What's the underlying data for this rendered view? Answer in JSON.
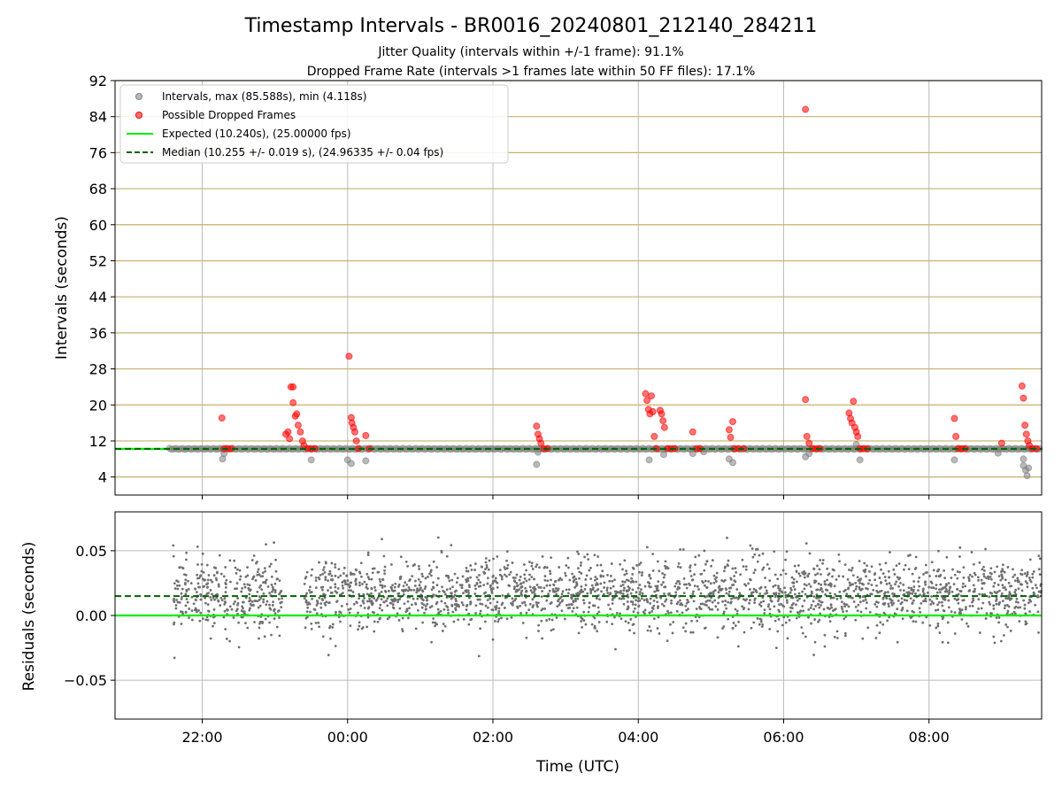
{
  "chart_data": [
    {
      "type": "scatter",
      "title": "Timestamp Intervals - BR0016_20240801_212140_284211",
      "subtitle_lines": [
        "Jitter Quality (intervals within +/-1 frame): 91.1%",
        "Dropped Frame Rate (intervals >1 frames late within 50 FF files): 17.1%"
      ],
      "ylabel": "Intervals (seconds)",
      "ylim": [
        0,
        92
      ],
      "yticks": [
        "4",
        "12",
        "20",
        "28",
        "36",
        "44",
        "52",
        "60",
        "68",
        "76",
        "84",
        "92"
      ],
      "xlim_hours": [
        20.8,
        33.55
      ],
      "x_grid_hours": [
        22,
        24,
        26,
        28,
        30,
        32
      ],
      "legend": {
        "placement": "upper-left",
        "entries": [
          "Intervals, max (85.588s), min (4.118s)",
          "Possible Dropped Frames",
          "Expected (10.240s), (25.00000 fps)",
          "Median (10.255 +/- 0.019 s), (24.96335 +/- 0.04 fps)"
        ]
      },
      "expected_interval": 10.24,
      "median_interval": 10.255,
      "colors": {
        "intervals": "#808080",
        "dropped": "#ff0000",
        "expected": "#00ee00",
        "median": "#006400",
        "hgrid": "#c8b06a",
        "vgrid": "#bbbbbb"
      },
      "interval_band": {
        "x_start": 21.55,
        "x_end": 33.55,
        "value": 10.24
      },
      "interval_outliers": [
        [
          22.28,
          8.0
        ],
        [
          22.3,
          9.2
        ],
        [
          23.5,
          7.8
        ],
        [
          24.0,
          7.8
        ],
        [
          24.05,
          7.0
        ],
        [
          24.25,
          7.6
        ],
        [
          26.6,
          6.8
        ],
        [
          26.62,
          9.5
        ],
        [
          28.15,
          7.8
        ],
        [
          28.35,
          9.0
        ],
        [
          28.75,
          9.2
        ],
        [
          28.9,
          9.6
        ],
        [
          29.25,
          8.0
        ],
        [
          29.3,
          7.2
        ],
        [
          30.3,
          8.5
        ],
        [
          30.35,
          9.2
        ],
        [
          31.05,
          7.8
        ],
        [
          31.0,
          11.2
        ],
        [
          32.35,
          7.8
        ],
        [
          32.95,
          9.3
        ],
        [
          33.3,
          8.0
        ],
        [
          33.3,
          6.5
        ],
        [
          33.33,
          5.5
        ],
        [
          33.35,
          4.3
        ],
        [
          33.37,
          6.0
        ]
      ],
      "dropped_frames": [
        [
          22.27,
          17.1
        ],
        [
          22.3,
          10.3
        ],
        [
          22.35,
          10.3
        ],
        [
          22.4,
          10.3
        ],
        [
          23.15,
          13.5
        ],
        [
          23.18,
          14.0
        ],
        [
          23.2,
          12.5
        ],
        [
          23.22,
          24.0
        ],
        [
          23.25,
          24.0
        ],
        [
          23.25,
          20.5
        ],
        [
          23.28,
          17.5
        ],
        [
          23.3,
          18.0
        ],
        [
          23.32,
          15.5
        ],
        [
          23.35,
          14.0
        ],
        [
          23.38,
          12.0
        ],
        [
          23.4,
          11.0
        ],
        [
          23.45,
          10.3
        ],
        [
          23.5,
          10.3
        ],
        [
          23.55,
          10.3
        ],
        [
          24.02,
          30.8
        ],
        [
          24.05,
          17.2
        ],
        [
          24.06,
          16.0
        ],
        [
          24.08,
          15.0
        ],
        [
          24.1,
          14.0
        ],
        [
          24.12,
          12.0
        ],
        [
          24.15,
          10.3
        ],
        [
          24.25,
          13.2
        ],
        [
          24.3,
          10.3
        ],
        [
          26.6,
          15.3
        ],
        [
          26.62,
          13.5
        ],
        [
          26.64,
          12.5
        ],
        [
          26.66,
          11.5
        ],
        [
          26.7,
          10.3
        ],
        [
          26.75,
          10.3
        ],
        [
          28.1,
          22.5
        ],
        [
          28.12,
          21.0
        ],
        [
          28.14,
          19.0
        ],
        [
          28.16,
          18.0
        ],
        [
          28.18,
          22.0
        ],
        [
          28.2,
          18.5
        ],
        [
          28.22,
          13.0
        ],
        [
          28.25,
          10.3
        ],
        [
          28.3,
          18.8
        ],
        [
          28.32,
          18.0
        ],
        [
          28.34,
          16.5
        ],
        [
          28.36,
          15.0
        ],
        [
          28.4,
          10.3
        ],
        [
          28.45,
          10.3
        ],
        [
          28.5,
          10.3
        ],
        [
          28.75,
          14.0
        ],
        [
          28.8,
          10.3
        ],
        [
          28.85,
          10.3
        ],
        [
          29.25,
          14.5
        ],
        [
          29.27,
          12.8
        ],
        [
          29.3,
          16.3
        ],
        [
          29.32,
          10.3
        ],
        [
          29.38,
          10.3
        ],
        [
          29.45,
          10.3
        ],
        [
          30.3,
          85.6
        ],
        [
          30.3,
          21.2
        ],
        [
          30.32,
          13.0
        ],
        [
          30.35,
          11.5
        ],
        [
          30.4,
          10.3
        ],
        [
          30.45,
          10.3
        ],
        [
          30.5,
          10.3
        ],
        [
          30.9,
          18.2
        ],
        [
          30.92,
          17.0
        ],
        [
          30.94,
          16.0
        ],
        [
          30.96,
          20.8
        ],
        [
          30.98,
          15.0
        ],
        [
          31.0,
          14.0
        ],
        [
          31.02,
          13.0
        ],
        [
          31.05,
          10.3
        ],
        [
          31.1,
          10.3
        ],
        [
          31.15,
          10.3
        ],
        [
          32.35,
          17.0
        ],
        [
          32.37,
          13.0
        ],
        [
          32.4,
          10.3
        ],
        [
          32.45,
          10.3
        ],
        [
          32.5,
          10.3
        ],
        [
          33.0,
          11.5
        ],
        [
          33.28,
          24.2
        ],
        [
          33.3,
          21.5
        ],
        [
          33.32,
          15.5
        ],
        [
          33.34,
          13.5
        ],
        [
          33.36,
          12.0
        ],
        [
          33.38,
          11.0
        ],
        [
          33.42,
          10.3
        ],
        [
          33.48,
          10.3
        ]
      ]
    },
    {
      "type": "scatter",
      "xlabel": "Time (UTC)",
      "ylabel": "Residuals (seconds)",
      "ylim": [
        -0.08,
        0.08
      ],
      "yticks": [
        "−0.05",
        "0.00",
        "0.05"
      ],
      "xticks": [
        "22:00",
        "00:00",
        "02:00",
        "04:00",
        "06:00",
        "08:00"
      ],
      "xlim_hours": [
        20.8,
        33.55
      ],
      "expected_residual": 0.0,
      "median_residual": 0.015,
      "point_color": "#707070",
      "segments": [
        [
          21.6,
          23.1
        ],
        [
          23.4,
          33.55
        ]
      ],
      "mean": 0.016,
      "spread": 0.014,
      "point_count": 2600
    }
  ]
}
